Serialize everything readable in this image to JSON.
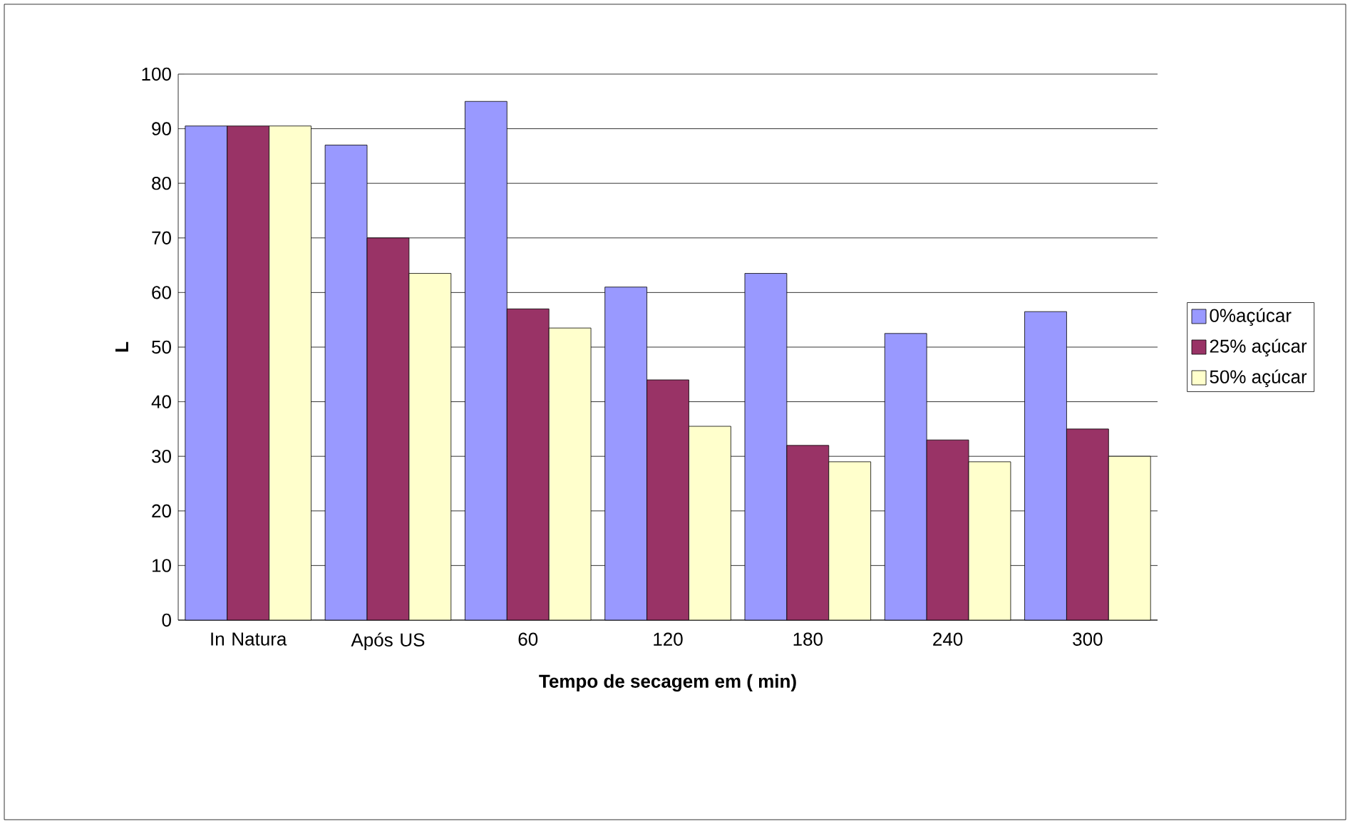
{
  "chart_data": {
    "type": "bar",
    "xlabel": "Tempo de secagem em ( min)",
    "ylabel": "L",
    "categories": [
      "In Natura",
      "Após US",
      "60",
      "120",
      "180",
      "240",
      "300"
    ],
    "series": [
      {
        "name": "0%açúcar",
        "color": "#9999ff",
        "values": [
          90.5,
          87,
          95,
          61,
          63.5,
          52.5,
          56.5
        ]
      },
      {
        "name": "25% açúcar",
        "color": "#993366",
        "values": [
          90.5,
          70,
          57,
          44,
          32,
          33,
          35
        ]
      },
      {
        "name": "50% açúcar",
        "color": "#ffffcc",
        "values": [
          90.5,
          63.5,
          53.5,
          35.5,
          29,
          29,
          30
        ]
      }
    ],
    "ylim": [
      0,
      100
    ],
    "yticks": [
      0,
      10,
      20,
      30,
      40,
      50,
      60,
      70,
      80,
      90,
      100
    ],
    "grid": "y",
    "legend": "right"
  }
}
